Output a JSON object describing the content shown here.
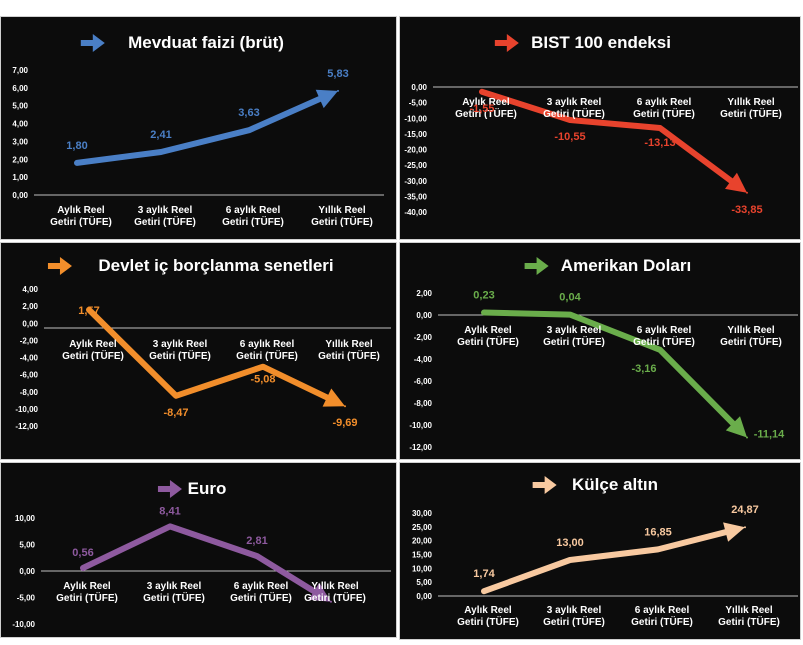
{
  "chart_data": [
    {
      "type": "line",
      "title": "Mevduat faizi (brüt)",
      "color": "#4a7fc6",
      "categories": [
        "Aylık Reel Getiri (TÜFE)",
        "3 aylık Reel Getiri (TÜFE)",
        "6 aylık Reel Getiri (TÜFE)",
        "Yıllık Reel Getiri (TÜFE)"
      ],
      "values": [
        1.8,
        2.41,
        3.63,
        5.83
      ],
      "value_labels": [
        "1,80",
        "2,41",
        "3,63",
        "5,83"
      ],
      "ylim": [
        0,
        7
      ],
      "yticks": [
        "7,00",
        "6,00",
        "5,00",
        "4,00",
        "3,00",
        "2,00",
        "1,00",
        "0,00"
      ],
      "grid": false,
      "legend": "none"
    },
    {
      "type": "line",
      "title": "BIST 100 endeksi",
      "color": "#e8432d",
      "categories": [
        "Aylık Reel Getiri (TÜFE)",
        "3 aylık Reel Getiri (TÜFE)",
        "6 aylık Reel Getiri (TÜFE)",
        "Yıllık Reel Getiri (TÜFE)"
      ],
      "values": [
        -1.55,
        -10.55,
        -13.13,
        -33.85
      ],
      "value_labels": [
        "-1,55",
        "-10,55",
        "-13,13",
        "-33,85"
      ],
      "ylim": [
        -40,
        0
      ],
      "yticks": [
        "0,00",
        "-5,00",
        "-10,00",
        "-15,00",
        "-20,00",
        "-25,00",
        "-30,00",
        "-35,00",
        "-40,00"
      ],
      "grid": false,
      "legend": "none"
    },
    {
      "type": "line",
      "title": "Devlet iç borçlanma senetleri",
      "color": "#f28e2b",
      "categories": [
        "Aylık Reel Getiri (TÜFE)",
        "3 aylık Reel Getiri (TÜFE)",
        "6 aylık Reel Getiri (TÜFE)",
        "Yıllık Reel Getiri (TÜFE)"
      ],
      "values": [
        1.57,
        -8.47,
        -5.08,
        -9.69
      ],
      "value_labels": [
        "1,57",
        "-8,47",
        "-5,08",
        "-9,69"
      ],
      "ylim": [
        -12,
        4
      ],
      "yticks": [
        "4,00",
        "2,00",
        "0,00",
        "-2,00",
        "-4,00",
        "-6,00",
        "-8,00",
        "-10,00",
        "-12,00"
      ],
      "grid": false,
      "legend": "none"
    },
    {
      "type": "line",
      "title": "Amerikan Doları",
      "color": "#6aad4b",
      "categories": [
        "Aylık Reel Getiri (TÜFE)",
        "3 aylık Reel Getiri (TÜFE)",
        "6 aylık Reel Getiri (TÜFE)",
        "Yıllık Reel Getiri (TÜFE)"
      ],
      "values": [
        0.23,
        0.04,
        -3.16,
        -11.14
      ],
      "value_labels": [
        "0,23",
        "0,04",
        "-3,16",
        "-11,14"
      ],
      "ylim": [
        -12,
        2
      ],
      "yticks": [
        "2,00",
        "0,00",
        "-2,00",
        "-4,00",
        "-6,00",
        "-8,00",
        "-10,00",
        "-12,00"
      ],
      "grid": false,
      "legend": "none"
    },
    {
      "type": "line",
      "title": "Euro",
      "color": "#8e5a9f",
      "categories": [
        "Aylık Reel Getiri (TÜFE)",
        "3 aylık Reel Getiri (TÜFE)",
        "6 aylık Reel Getiri (TÜFE)",
        "Yıllık Reel Getiri (TÜFE)"
      ],
      "values": [
        0.56,
        8.41,
        2.81,
        -5.8
      ],
      "value_labels": [
        "0,56",
        "8,41",
        "2,81",
        ""
      ],
      "ylim": [
        -10,
        10
      ],
      "yticks": [
        "10,00",
        "5,00",
        "0,00",
        "-5,00",
        "-10,00"
      ],
      "grid": false,
      "legend": "none"
    },
    {
      "type": "line",
      "title": "Külçe altın",
      "color": "#f8c9a0",
      "categories": [
        "Aylık Reel Getiri (TÜFE)",
        "3 aylık Reel Getiri (TÜFE)",
        "6 aylık Reel Getiri (TÜFE)",
        "Yıllık Reel Getiri (TÜFE)"
      ],
      "values": [
        1.74,
        13.0,
        16.85,
        24.87
      ],
      "value_labels": [
        "1,74",
        "13,00",
        "16,85",
        "24,87"
      ],
      "ylim": [
        0,
        30
      ],
      "yticks": [
        "30,00",
        "25,00",
        "20,00",
        "15,00",
        "10,00",
        "5,00",
        "0,00"
      ],
      "grid": false,
      "legend": "none"
    }
  ]
}
